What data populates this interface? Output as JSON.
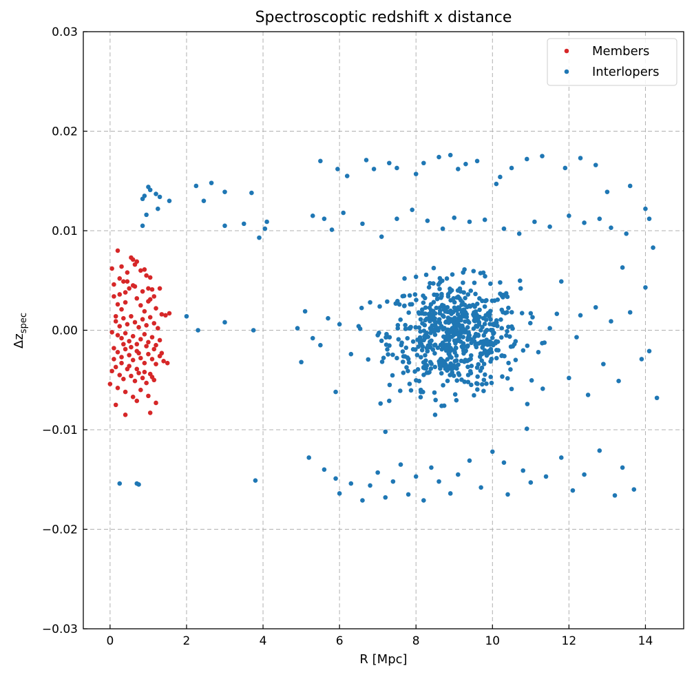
{
  "chart_data": {
    "type": "scatter",
    "title": "Spectroscoptic redshift x distance",
    "xlabel": "R [Mpc]",
    "ylabel_base": "Δz",
    "ylabel_sub": "spec",
    "xlim": [
      -0.7,
      15.0
    ],
    "ylim": [
      -0.03,
      0.03
    ],
    "xticks": [
      0,
      2,
      4,
      6,
      8,
      10,
      12,
      14
    ],
    "xtick_labels": [
      "0",
      "2",
      "4",
      "6",
      "8",
      "10",
      "12",
      "14"
    ],
    "yticks": [
      -0.03,
      -0.02,
      -0.01,
      0.0,
      0.01,
      0.02,
      0.03
    ],
    "ytick_labels": [
      "−0.03",
      "−0.02",
      "−0.01",
      "0.00",
      "0.01",
      "0.02",
      "0.03"
    ],
    "grid": true,
    "legend_position": "top-right",
    "series": [
      {
        "name": "Members",
        "color": "#d62728",
        "points": [
          [
            0.05,
            0.0062
          ],
          [
            0.1,
            0.0046
          ],
          [
            0.15,
            0.0014
          ],
          [
            0.2,
            0.008
          ],
          [
            0.25,
            0.0052
          ],
          [
            0.3,
            0.0064
          ],
          [
            0.35,
            0.0049
          ],
          [
            0.4,
            0.0028
          ],
          [
            0.45,
            0.0058
          ],
          [
            0.55,
            0.0073
          ],
          [
            0.6,
            0.0071
          ],
          [
            0.65,
            0.0066
          ],
          [
            0.7,
            0.0069
          ],
          [
            0.8,
            0.006
          ],
          [
            0.9,
            0.0061
          ],
          [
            0.95,
            0.0055
          ],
          [
            1.0,
            0.0042
          ],
          [
            1.05,
            0.0053
          ],
          [
            1.15,
            0.0034
          ],
          [
            1.3,
            0.0042
          ],
          [
            0.1,
            0.0034
          ],
          [
            0.2,
            0.0026
          ],
          [
            0.3,
            0.0021
          ],
          [
            0.4,
            0.0038
          ],
          [
            0.5,
            0.0042
          ],
          [
            0.6,
            0.0045
          ],
          [
            0.7,
            0.0032
          ],
          [
            0.8,
            0.0025
          ],
          [
            0.9,
            0.0019
          ],
          [
            1.0,
            0.0029
          ],
          [
            1.1,
            0.0041
          ],
          [
            1.2,
            0.0022
          ],
          [
            1.35,
            0.0016
          ],
          [
            1.45,
            0.0015
          ],
          [
            1.55,
            0.0017
          ],
          [
            0.15,
            0.0009
          ],
          [
            0.25,
            0.0004
          ],
          [
            0.35,
            0.0012
          ],
          [
            0.45,
            0.0006
          ],
          [
            0.55,
            0.0014
          ],
          [
            0.65,
            0.0008
          ],
          [
            0.75,
            0.0003
          ],
          [
            0.85,
            0.0011
          ],
          [
            0.95,
            0.0005
          ],
          [
            1.05,
            0.0013
          ],
          [
            1.15,
            0.0007
          ],
          [
            1.25,
            0.0002
          ],
          [
            0.05,
            -0.0002
          ],
          [
            0.2,
            -0.0005
          ],
          [
            0.3,
            -0.0008
          ],
          [
            0.4,
            -0.0003
          ],
          [
            0.5,
            -0.0011
          ],
          [
            0.6,
            -0.0006
          ],
          [
            0.7,
            -0.0014
          ],
          [
            0.8,
            -0.0009
          ],
          [
            0.9,
            -0.0004
          ],
          [
            1.0,
            -0.0012
          ],
          [
            1.1,
            -0.0007
          ],
          [
            1.2,
            -0.0015
          ],
          [
            1.3,
            -0.001
          ],
          [
            0.1,
            -0.0018
          ],
          [
            0.2,
            -0.0022
          ],
          [
            0.3,
            -0.0027
          ],
          [
            0.4,
            -0.0019
          ],
          [
            0.5,
            -0.0025
          ],
          [
            0.6,
            -0.003
          ],
          [
            0.7,
            -0.0021
          ],
          [
            0.8,
            -0.0028
          ],
          [
            0.9,
            -0.0033
          ],
          [
            1.0,
            -0.0024
          ],
          [
            1.1,
            -0.0029
          ],
          [
            1.2,
            -0.0034
          ],
          [
            1.3,
            -0.0026
          ],
          [
            1.4,
            -0.0031
          ],
          [
            1.5,
            -0.0033
          ],
          [
            0.05,
            -0.0041
          ],
          [
            0.15,
            -0.0037
          ],
          [
            0.25,
            -0.0045
          ],
          [
            0.35,
            -0.0049
          ],
          [
            0.45,
            -0.0039
          ],
          [
            0.55,
            -0.0046
          ],
          [
            0.65,
            -0.0051
          ],
          [
            0.75,
            -0.0043
          ],
          [
            0.85,
            -0.0048
          ],
          [
            0.95,
            -0.0053
          ],
          [
            1.05,
            -0.0044
          ],
          [
            1.15,
            -0.005
          ],
          [
            0.0,
            -0.0054
          ],
          [
            0.2,
            -0.0058
          ],
          [
            0.4,
            -0.0062
          ],
          [
            0.6,
            -0.0067
          ],
          [
            0.7,
            -0.0071
          ],
          [
            0.8,
            -0.006
          ],
          [
            1.0,
            -0.0066
          ],
          [
            1.2,
            -0.0073
          ],
          [
            0.15,
            -0.0075
          ],
          [
            0.4,
            -0.0085
          ],
          [
            1.05,
            -0.0083
          ],
          [
            0.25,
            0.0036
          ],
          [
            0.45,
            0.0049
          ],
          [
            0.65,
            0.0044
          ],
          [
            0.85,
            0.0039
          ],
          [
            1.05,
            0.0031
          ],
          [
            0.35,
            -0.0014
          ],
          [
            0.55,
            -0.0017
          ],
          [
            0.75,
            -0.0023
          ],
          [
            0.95,
            -0.0016
          ],
          [
            1.15,
            -0.0019
          ],
          [
            1.35,
            -0.0023
          ],
          [
            0.1,
            -0.0029
          ],
          [
            0.3,
            -0.0033
          ],
          [
            0.5,
            -0.0036
          ],
          [
            0.7,
            -0.0039
          ],
          [
            0.9,
            -0.0042
          ],
          [
            1.1,
            -0.0047
          ]
        ]
      },
      {
        "name": "Interlopers",
        "color": "#1f77b4",
        "points": [
          [
            0.85,
            0.0132
          ],
          [
            0.9,
            0.0135
          ],
          [
            1.0,
            0.0144
          ],
          [
            1.05,
            0.0141
          ],
          [
            1.2,
            0.0137
          ],
          [
            1.3,
            0.0134
          ],
          [
            1.55,
            0.013
          ],
          [
            0.95,
            0.0116
          ],
          [
            1.25,
            0.0122
          ],
          [
            0.85,
            0.0105
          ],
          [
            2.25,
            0.0145
          ],
          [
            2.45,
            0.013
          ],
          [
            2.65,
            0.0148
          ],
          [
            3.0,
            0.0139
          ],
          [
            3.0,
            0.0105
          ],
          [
            3.5,
            0.0107
          ],
          [
            3.7,
            0.0138
          ],
          [
            3.9,
            0.0093
          ],
          [
            4.05,
            0.0102
          ],
          [
            4.1,
            0.0109
          ],
          [
            2.0,
            0.0014
          ],
          [
            2.3,
            0.0
          ],
          [
            3.0,
            0.0008
          ],
          [
            3.75,
            0.0
          ],
          [
            0.25,
            -0.0154
          ],
          [
            0.7,
            -0.0154
          ],
          [
            0.75,
            -0.0155
          ],
          [
            3.8,
            -0.0151
          ],
          [
            5.5,
            0.017
          ],
          [
            5.95,
            0.0162
          ],
          [
            6.2,
            0.0155
          ],
          [
            6.7,
            0.0171
          ],
          [
            6.9,
            0.0162
          ],
          [
            7.3,
            0.0168
          ],
          [
            7.5,
            0.0163
          ],
          [
            8.0,
            0.0157
          ],
          [
            8.2,
            0.0168
          ],
          [
            8.6,
            0.0174
          ],
          [
            8.9,
            0.0176
          ],
          [
            9.1,
            0.0162
          ],
          [
            9.3,
            0.0167
          ],
          [
            9.6,
            0.017
          ],
          [
            10.1,
            0.0147
          ],
          [
            10.2,
            0.0154
          ],
          [
            10.5,
            0.0163
          ],
          [
            10.9,
            0.0172
          ],
          [
            11.3,
            0.0175
          ],
          [
            11.9,
            0.0163
          ],
          [
            12.3,
            0.0173
          ],
          [
            12.7,
            0.0166
          ],
          [
            13.0,
            0.0139
          ],
          [
            13.6,
            0.0145
          ],
          [
            14.0,
            0.0122
          ],
          [
            5.3,
            0.0115
          ],
          [
            5.6,
            0.0112
          ],
          [
            5.8,
            0.0101
          ],
          [
            6.1,
            0.0118
          ],
          [
            6.6,
            0.0107
          ],
          [
            7.1,
            0.0094
          ],
          [
            7.5,
            0.0112
          ],
          [
            7.9,
            0.0121
          ],
          [
            8.3,
            0.011
          ],
          [
            8.7,
            0.0102
          ],
          [
            9.0,
            0.0113
          ],
          [
            9.4,
            0.0109
          ],
          [
            9.8,
            0.0111
          ],
          [
            10.3,
            0.0102
          ],
          [
            10.7,
            0.0097
          ],
          [
            11.1,
            0.0109
          ],
          [
            11.5,
            0.0104
          ],
          [
            12.0,
            0.0115
          ],
          [
            12.4,
            0.0108
          ],
          [
            12.8,
            0.0112
          ],
          [
            13.1,
            0.0103
          ],
          [
            13.5,
            0.0097
          ],
          [
            14.1,
            0.0112
          ],
          [
            14.2,
            0.0083
          ],
          [
            13.4,
            0.0063
          ],
          [
            5.2,
            -0.0128
          ],
          [
            5.6,
            -0.014
          ],
          [
            5.9,
            -0.0149
          ],
          [
            6.0,
            -0.0164
          ],
          [
            6.3,
            -0.0154
          ],
          [
            6.6,
            -0.0171
          ],
          [
            6.8,
            -0.0156
          ],
          [
            7.0,
            -0.0143
          ],
          [
            7.2,
            -0.0168
          ],
          [
            7.4,
            -0.0152
          ],
          [
            7.6,
            -0.0135
          ],
          [
            7.8,
            -0.0165
          ],
          [
            8.0,
            -0.0147
          ],
          [
            8.2,
            -0.0171
          ],
          [
            8.4,
            -0.0138
          ],
          [
            8.6,
            -0.0152
          ],
          [
            8.9,
            -0.0164
          ],
          [
            9.1,
            -0.0145
          ],
          [
            9.4,
            -0.0131
          ],
          [
            9.7,
            -0.0158
          ],
          [
            10.0,
            -0.0122
          ],
          [
            10.3,
            -0.0133
          ],
          [
            10.4,
            -0.0165
          ],
          [
            10.8,
            -0.0141
          ],
          [
            11.0,
            -0.0153
          ],
          [
            11.4,
            -0.0147
          ],
          [
            11.8,
            -0.0128
          ],
          [
            12.1,
            -0.0161
          ],
          [
            12.4,
            -0.0145
          ],
          [
            12.8,
            -0.0121
          ],
          [
            13.2,
            -0.0166
          ],
          [
            13.4,
            -0.0138
          ],
          [
            13.7,
            -0.016
          ],
          [
            7.2,
            -0.0102
          ],
          [
            8.5,
            -0.0085
          ],
          [
            10.9,
            -0.0099
          ],
          [
            4.9,
            0.0002
          ],
          [
            5.0,
            -0.0032
          ],
          [
            5.1,
            0.0019
          ],
          [
            5.3,
            -0.0008
          ],
          [
            5.5,
            -0.0015
          ],
          [
            5.7,
            0.0012
          ],
          [
            5.9,
            -0.0062
          ],
          [
            6.0,
            0.0006
          ],
          [
            6.3,
            -0.0024
          ],
          [
            6.5,
            0.0004
          ],
          [
            6.8,
            0.0028
          ],
          [
            7.0,
            -0.0005
          ],
          [
            7.3,
            -0.0071
          ],
          [
            7.5,
            -0.0028
          ],
          [
            7.7,
            0.0052
          ],
          [
            11.0,
            0.0017
          ],
          [
            11.2,
            -0.0022
          ],
          [
            11.5,
            0.0002
          ],
          [
            11.8,
            0.0049
          ],
          [
            12.0,
            -0.0048
          ],
          [
            12.3,
            0.0015
          ],
          [
            12.5,
            -0.0065
          ],
          [
            12.7,
            0.0023
          ],
          [
            12.9,
            -0.0034
          ],
          [
            13.1,
            0.0009
          ],
          [
            13.3,
            -0.0051
          ],
          [
            13.6,
            0.0018
          ],
          [
            13.9,
            -0.0029
          ],
          [
            14.0,
            0.0043
          ],
          [
            14.1,
            -0.0021
          ],
          [
            14.3,
            -0.0068
          ],
          [
            10.5,
            -0.0059
          ],
          [
            10.2,
            0.0048
          ],
          [
            11.3,
            -0.0013
          ],
          [
            12.2,
            -0.0007
          ]
        ],
        "dense_cluster": {
          "center": [
            9.0,
            -0.0005
          ],
          "count": 620
        }
      }
    ]
  }
}
